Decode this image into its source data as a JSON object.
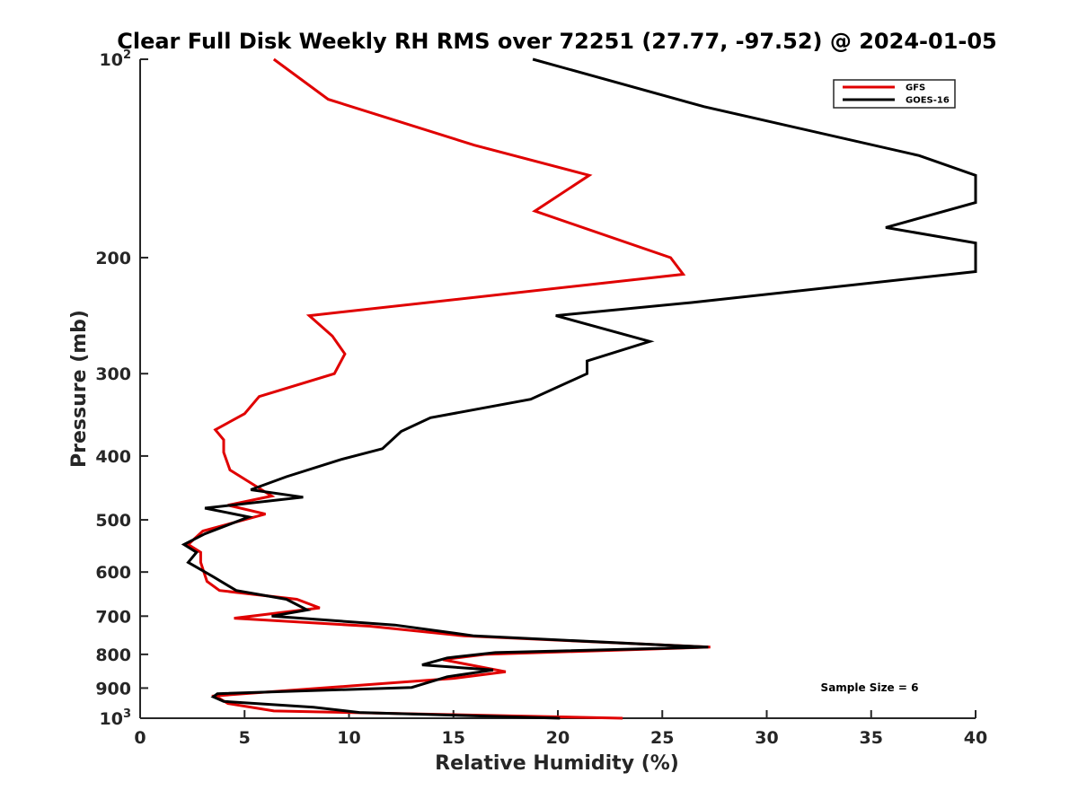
{
  "chart_data": {
    "type": "line",
    "title": "Clear Full Disk Weekly RH RMS over 72251 (27.77, -97.52) @ 2024-01-05",
    "xlabel": "Relative Humidity (%)",
    "ylabel": "Pressure (mb)",
    "xlim": [
      0,
      40
    ],
    "ylim": [
      100,
      1000
    ],
    "y_scale": "log",
    "y_reversed": true,
    "grid": false,
    "legend_position": "top-right",
    "x_ticks": [
      "0",
      "5",
      "10",
      "15",
      "20",
      "25",
      "30",
      "35",
      "40"
    ],
    "y_ticks": [
      {
        "value": 100,
        "base": "10",
        "exp": "2"
      },
      {
        "value": 200,
        "label": "200"
      },
      {
        "value": 300,
        "label": "300"
      },
      {
        "value": 400,
        "label": "400"
      },
      {
        "value": 500,
        "label": "500"
      },
      {
        "value": 600,
        "label": "600"
      },
      {
        "value": 700,
        "label": "700"
      },
      {
        "value": 800,
        "label": "800"
      },
      {
        "value": 900,
        "label": "900"
      },
      {
        "value": 1000,
        "base": "10",
        "exp": "3"
      }
    ],
    "annotation": "Sample Size = 6",
    "series": [
      {
        "name": "GFS",
        "color": "#e00000",
        "points": [
          [
            6.4,
            100
          ],
          [
            9.0,
            115
          ],
          [
            16.0,
            135
          ],
          [
            21.5,
            150
          ],
          [
            18.9,
            170
          ],
          [
            25.4,
            200
          ],
          [
            26.0,
            212
          ],
          [
            8.1,
            245
          ],
          [
            9.2,
            263
          ],
          [
            9.8,
            280
          ],
          [
            9.3,
            300
          ],
          [
            5.7,
            325
          ],
          [
            5.0,
            345
          ],
          [
            3.6,
            365
          ],
          [
            4.0,
            378
          ],
          [
            4.0,
            395
          ],
          [
            4.3,
            420
          ],
          [
            6.3,
            460
          ],
          [
            4.2,
            475
          ],
          [
            6.0,
            490
          ],
          [
            3.0,
            520
          ],
          [
            2.3,
            545
          ],
          [
            2.9,
            560
          ],
          [
            2.9,
            580
          ],
          [
            3.2,
            620
          ],
          [
            3.8,
            640
          ],
          [
            7.5,
            660
          ],
          [
            8.6,
            680
          ],
          [
            4.5,
            705
          ],
          [
            11.0,
            725
          ],
          [
            15.5,
            750
          ],
          [
            27.3,
            780
          ],
          [
            16.5,
            800
          ],
          [
            14.5,
            815
          ],
          [
            17.5,
            850
          ],
          [
            15.0,
            870
          ],
          [
            3.6,
            925
          ],
          [
            4.2,
            950
          ],
          [
            6.4,
            975
          ],
          [
            23.1,
            1000
          ]
        ]
      },
      {
        "name": "GOES-16",
        "color": "#000000",
        "points": [
          [
            18.8,
            100
          ],
          [
            27.0,
            118
          ],
          [
            37.3,
            140
          ],
          [
            40.0,
            150
          ],
          [
            40.0,
            165
          ],
          [
            35.7,
            180
          ],
          [
            40.0,
            190
          ],
          [
            40.0,
            210
          ],
          [
            26.4,
            234
          ],
          [
            19.9,
            245
          ],
          [
            24.4,
            268
          ],
          [
            21.4,
            287
          ],
          [
            21.4,
            300
          ],
          [
            18.7,
            328
          ],
          [
            13.9,
            350
          ],
          [
            12.5,
            367
          ],
          [
            11.6,
            390
          ],
          [
            9.6,
            405
          ],
          [
            7.0,
            430
          ],
          [
            5.3,
            450
          ],
          [
            7.8,
            462
          ],
          [
            3.1,
            480
          ],
          [
            5.2,
            495
          ],
          [
            3.1,
            525
          ],
          [
            2.1,
            545
          ],
          [
            2.7,
            560
          ],
          [
            2.3,
            580
          ],
          [
            3.5,
            610
          ],
          [
            4.6,
            640
          ],
          [
            7.0,
            660
          ],
          [
            8.0,
            685
          ],
          [
            6.3,
            700
          ],
          [
            12.2,
            722
          ],
          [
            16.0,
            750
          ],
          [
            27.2,
            780
          ],
          [
            17.0,
            795
          ],
          [
            14.7,
            810
          ],
          [
            13.5,
            830
          ],
          [
            16.9,
            845
          ],
          [
            14.7,
            865
          ],
          [
            13.0,
            898
          ],
          [
            3.7,
            918
          ],
          [
            3.5,
            928
          ],
          [
            4.0,
            943
          ],
          [
            8.3,
            962
          ],
          [
            10.5,
            980
          ],
          [
            20.1,
            1000
          ]
        ]
      }
    ]
  }
}
